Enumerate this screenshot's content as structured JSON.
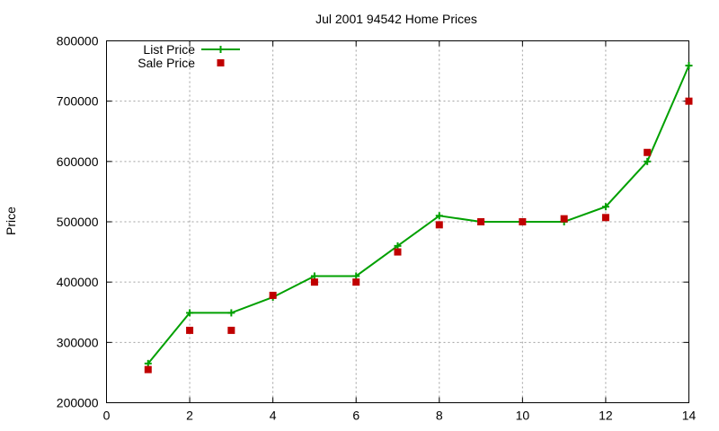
{
  "chart_data": {
    "type": "line",
    "title": "Jul 2001 94542 Home Prices",
    "xlabel": "",
    "ylabel": "Price",
    "xlim": [
      0,
      14
    ],
    "ylim": [
      200000,
      800000
    ],
    "xticks": [
      0,
      2,
      4,
      6,
      8,
      10,
      12,
      14
    ],
    "yticks": [
      200000,
      300000,
      400000,
      500000,
      600000,
      700000,
      800000
    ],
    "grid": true,
    "legend_position": "top-left",
    "series": [
      {
        "name": "List Price",
        "style": "linespoints",
        "marker": "plus",
        "color": "#00a000",
        "x": [
          1,
          2,
          3,
          4,
          5,
          6,
          7,
          8,
          9,
          10,
          11,
          12,
          13,
          14
        ],
        "y": [
          265000,
          349000,
          349000,
          375000,
          410000,
          410000,
          460000,
          510000,
          500000,
          500000,
          500000,
          525000,
          600000,
          759000
        ]
      },
      {
        "name": "Sale Price",
        "style": "points",
        "marker": "square",
        "color": "#c00000",
        "x": [
          1,
          2,
          3,
          4,
          5,
          6,
          7,
          8,
          9,
          10,
          11,
          12,
          13,
          14
        ],
        "y": [
          255000,
          320000,
          320000,
          378000,
          400000,
          400000,
          450000,
          495000,
          500000,
          500000,
          505000,
          507000,
          615000,
          700000
        ]
      }
    ]
  }
}
